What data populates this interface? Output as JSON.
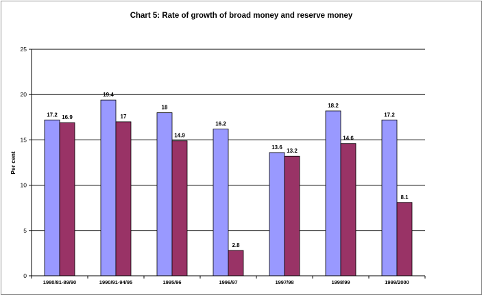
{
  "chart_data": {
    "type": "bar",
    "title": "Chart 5: Rate of growth of broad money and reserve money",
    "xlabel": "",
    "ylabel": "Per cent",
    "ylim": [
      0,
      25
    ],
    "yticks": [
      0,
      5,
      10,
      15,
      20,
      25
    ],
    "grid": true,
    "legend": "none",
    "categories": [
      "1980/81-89/90",
      "1990/91-94/95",
      "1995/96",
      "1996/97",
      "1997/98",
      "1998/99",
      "1999/2000"
    ],
    "series": [
      {
        "values": [
          17.2,
          19.4,
          18,
          16.2,
          13.6,
          18.2,
          17.2
        ],
        "color": "#9999ff"
      },
      {
        "values": [
          16.9,
          17,
          14.9,
          2.8,
          13.2,
          14.6,
          8.1
        ],
        "color": "#993366"
      }
    ],
    "data_labels": [
      [
        "17.2",
        "19.4",
        "18",
        "16.2",
        "13.6",
        "18.2",
        "17.2"
      ],
      [
        "16.9",
        "17",
        "14.9",
        "2.8",
        "13.2",
        "14.6",
        "8.1"
      ]
    ]
  }
}
